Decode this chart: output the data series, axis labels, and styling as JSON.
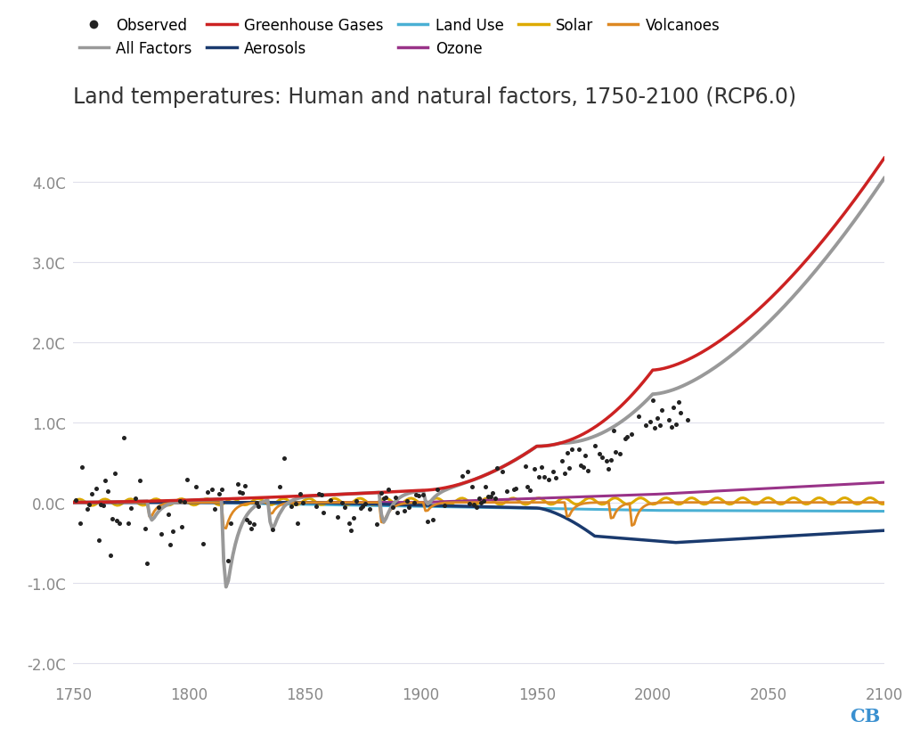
{
  "title": "Land temperatures: Human and natural factors, 1750-2100 (RCP6.0)",
  "title_fontsize": 17,
  "background_color": "#ffffff",
  "xlim": [
    1750,
    2100
  ],
  "ylim": [
    -2.2,
    4.8
  ],
  "yticks": [
    -2.0,
    -1.0,
    0.0,
    1.0,
    2.0,
    3.0,
    4.0
  ],
  "ytick_labels": [
    "-2.0C",
    "-1.0C",
    "0.0C",
    "1.0C",
    "2.0C",
    "3.0C",
    "4.0C"
  ],
  "xticks": [
    1750,
    1800,
    1850,
    1900,
    1950,
    2000,
    2050,
    2100
  ],
  "colors": {
    "all_factors": "#999999",
    "greenhouse": "#cc2222",
    "aerosols": "#1a3a6e",
    "land_use": "#4ab0d4",
    "ozone": "#993388",
    "solar": "#ddaa00",
    "volcanoes": "#dd8822",
    "observed": "#222222"
  },
  "grid_color": "#e0e0ec",
  "tick_color": "#888888"
}
